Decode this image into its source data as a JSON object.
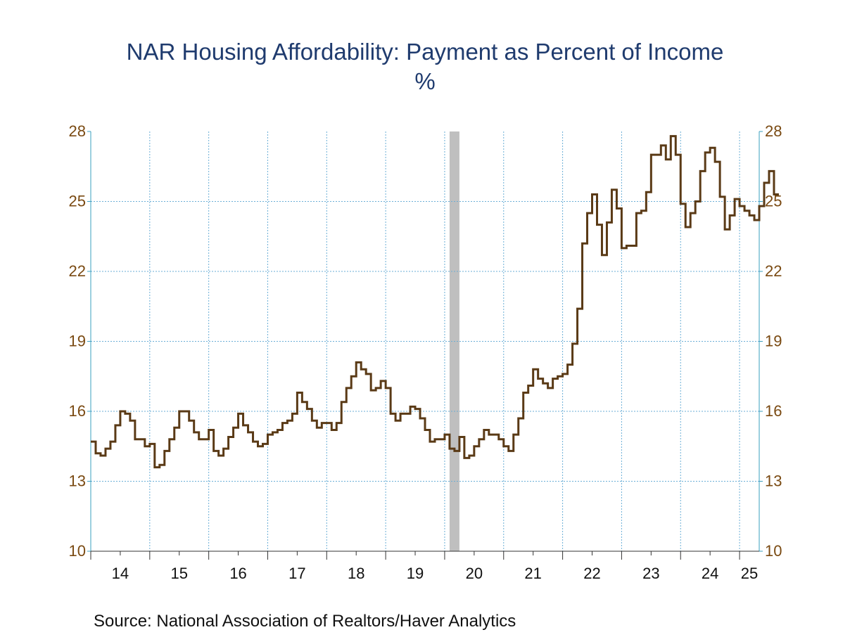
{
  "chart_data": {
    "type": "line",
    "title": "NAR Housing Affordability: Payment as Percent of Income",
    "subtitle": "%",
    "source": "Source:  National Association of Realtors/Haver Analytics",
    "x_tick_labels": [
      "14",
      "15",
      "16",
      "17",
      "18",
      "19",
      "20",
      "21",
      "22",
      "23",
      "24",
      "25"
    ],
    "y_ticks": [
      10,
      13,
      16,
      19,
      22,
      25,
      28
    ],
    "y_tick_labels": [
      "10",
      "13",
      "16",
      "19",
      "22",
      "25",
      "28"
    ],
    "ylim": [
      10,
      28
    ],
    "xlim": [
      2014.0,
      2025.3333
    ],
    "grid": true,
    "step": true,
    "recession": {
      "start": 2020.0833,
      "end": 2020.25
    },
    "series": [
      {
        "start": 2014.0,
        "frequency": "monthly",
        "values": [
          14.7,
          14.2,
          14.1,
          14.4,
          14.7,
          15.4,
          16.0,
          15.9,
          15.6,
          14.8,
          14.8,
          14.5,
          14.6,
          13.6,
          13.7,
          14.3,
          14.8,
          15.3,
          16.0,
          16.0,
          15.6,
          15.1,
          14.8,
          14.8,
          15.2,
          14.3,
          14.1,
          14.4,
          14.9,
          15.3,
          15.9,
          15.4,
          15.1,
          14.7,
          14.5,
          14.6,
          15.0,
          15.1,
          15.2,
          15.5,
          15.6,
          15.9,
          16.8,
          16.4,
          16.1,
          15.6,
          15.3,
          15.5,
          15.5,
          15.2,
          15.5,
          16.4,
          17.0,
          17.5,
          18.1,
          17.8,
          17.6,
          16.9,
          17.0,
          17.3,
          17.0,
          15.9,
          15.6,
          15.9,
          15.9,
          16.2,
          16.1,
          15.7,
          15.2,
          14.7,
          14.8,
          14.8,
          15.0,
          14.4,
          14.3,
          14.9,
          14.0,
          14.1,
          14.5,
          14.8,
          15.2,
          15.0,
          15.0,
          14.8,
          14.5,
          14.3,
          15.0,
          15.7,
          16.8,
          17.1,
          17.8,
          17.4,
          17.2,
          17.0,
          17.4,
          17.5,
          17.6,
          18.0,
          18.9,
          20.4,
          23.2,
          24.5,
          25.3,
          24.0,
          22.7,
          24.1,
          25.5,
          24.7,
          23.0,
          23.1,
          23.1,
          24.5,
          24.6,
          25.4,
          27.0,
          27.0,
          27.4,
          26.8,
          27.8,
          27.0,
          24.9,
          23.9,
          24.5,
          25.0,
          26.3,
          27.1,
          27.3,
          26.7,
          25.2,
          23.8,
          24.4,
          25.1,
          24.8,
          24.6,
          24.4,
          24.2,
          24.8,
          25.8,
          26.3,
          25.3
        ]
      }
    ]
  }
}
